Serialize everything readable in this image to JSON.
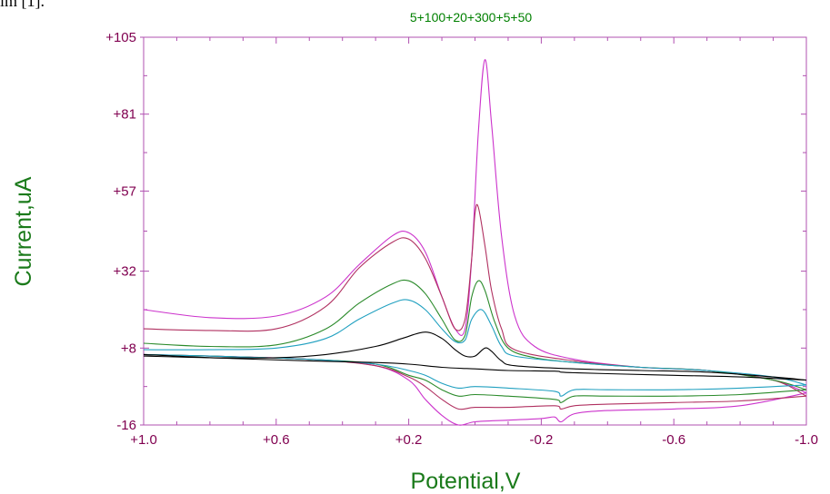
{
  "corner_text": "im [1].",
  "chart_data": {
    "type": "line",
    "title": "5+100+20+300+5+50",
    "xlabel": "Potential,V",
    "ylabel": "Current,uA",
    "xlim": [
      1.0,
      -1.0
    ],
    "ylim": [
      -16,
      105
    ],
    "x_ticks": [
      "+1.0",
      "+0.6",
      "+0.2",
      "-0.2",
      "-0.6",
      "-1.0"
    ],
    "x_tick_values": [
      1.0,
      0.6,
      0.2,
      -0.2,
      -0.6,
      -1.0
    ],
    "y_ticks": [
      "+105",
      "+81",
      "+57",
      "+32",
      "+8",
      "-16"
    ],
    "y_tick_values": [
      105,
      81,
      57,
      32,
      8,
      -16
    ],
    "grid": false,
    "colors": {
      "axis": "#b050b0",
      "tick_label": "#800050",
      "title": "#008000",
      "axis_label": "#1a7a1a"
    },
    "series": [
      {
        "color": "#cc33cc",
        "forward": [
          [
            1.0,
            20
          ],
          [
            0.8,
            17.5
          ],
          [
            0.6,
            18
          ],
          [
            0.45,
            24
          ],
          [
            0.35,
            34
          ],
          [
            0.25,
            43
          ],
          [
            0.2,
            44
          ],
          [
            0.15,
            38
          ],
          [
            0.1,
            24
          ],
          [
            0.06,
            14
          ],
          [
            0.03,
            14
          ],
          [
            0.01,
            36
          ],
          [
            -0.01,
            75
          ],
          [
            -0.03,
            98
          ],
          [
            -0.05,
            78
          ],
          [
            -0.08,
            43
          ],
          [
            -0.12,
            18
          ],
          [
            -0.18,
            8.5
          ],
          [
            -0.3,
            4.5
          ],
          [
            -0.5,
            2
          ],
          [
            -0.7,
            1
          ],
          [
            -0.9,
            -2
          ],
          [
            -1.0,
            -6
          ]
        ],
        "reverse": [
          [
            -1.0,
            -6
          ],
          [
            -0.8,
            -10
          ],
          [
            -0.6,
            -11
          ],
          [
            -0.4,
            -11.5
          ],
          [
            -0.3,
            -12.5
          ],
          [
            -0.26,
            -15
          ],
          [
            -0.24,
            -13.5
          ],
          [
            -0.2,
            -14
          ],
          [
            -0.1,
            -14.5
          ],
          [
            0.0,
            -15
          ],
          [
            0.05,
            -16
          ],
          [
            0.1,
            -13
          ],
          [
            0.15,
            -8
          ],
          [
            0.2,
            -2
          ],
          [
            0.3,
            2.5
          ],
          [
            0.5,
            4.5
          ],
          [
            0.8,
            5.5
          ],
          [
            1.0,
            6
          ]
        ]
      },
      {
        "color": "#b03060",
        "forward": [
          [
            1.0,
            14
          ],
          [
            0.8,
            13.5
          ],
          [
            0.6,
            14
          ],
          [
            0.45,
            21
          ],
          [
            0.35,
            33
          ],
          [
            0.25,
            41
          ],
          [
            0.2,
            42
          ],
          [
            0.15,
            36
          ],
          [
            0.1,
            24
          ],
          [
            0.06,
            14
          ],
          [
            0.03,
            17
          ],
          [
            0.01,
            36
          ],
          [
            0.0,
            50
          ],
          [
            -0.01,
            52
          ],
          [
            -0.03,
            40
          ],
          [
            -0.05,
            26
          ],
          [
            -0.08,
            14
          ],
          [
            -0.12,
            7.5
          ],
          [
            -0.3,
            4
          ],
          [
            -0.5,
            2
          ],
          [
            -0.7,
            1
          ],
          [
            -0.9,
            -2
          ],
          [
            -1.0,
            -7
          ]
        ],
        "reverse": [
          [
            -1.0,
            -7
          ],
          [
            -0.8,
            -8.5
          ],
          [
            -0.6,
            -9
          ],
          [
            -0.4,
            -9.5
          ],
          [
            -0.3,
            -10
          ],
          [
            -0.26,
            -11
          ],
          [
            -0.24,
            -10
          ],
          [
            -0.1,
            -10.5
          ],
          [
            0.0,
            -10.5
          ],
          [
            0.05,
            -11
          ],
          [
            0.1,
            -8
          ],
          [
            0.15,
            -4
          ],
          [
            0.2,
            -1
          ],
          [
            0.3,
            2.5
          ],
          [
            0.5,
            4.5
          ],
          [
            0.8,
            5.5
          ],
          [
            1.0,
            6
          ]
        ]
      },
      {
        "color": "#2a8a2a",
        "forward": [
          [
            1.0,
            9.5
          ],
          [
            0.8,
            8.5
          ],
          [
            0.6,
            9
          ],
          [
            0.45,
            14
          ],
          [
            0.35,
            22
          ],
          [
            0.25,
            28
          ],
          [
            0.2,
            29
          ],
          [
            0.15,
            25
          ],
          [
            0.1,
            17
          ],
          [
            0.06,
            10.5
          ],
          [
            0.03,
            12
          ],
          [
            0.01,
            24
          ],
          [
            -0.01,
            29
          ],
          [
            -0.03,
            26
          ],
          [
            -0.06,
            16
          ],
          [
            -0.1,
            8
          ],
          [
            -0.18,
            5
          ],
          [
            -0.3,
            3.5
          ],
          [
            -0.5,
            2
          ],
          [
            -0.7,
            1
          ],
          [
            -0.9,
            -2
          ],
          [
            -1.0,
            -5
          ]
        ],
        "reverse": [
          [
            -1.0,
            -5
          ],
          [
            -0.8,
            -6.5
          ],
          [
            -0.6,
            -7
          ],
          [
            -0.4,
            -7
          ],
          [
            -0.3,
            -7
          ],
          [
            -0.26,
            -9
          ],
          [
            -0.24,
            -8
          ],
          [
            -0.1,
            -7
          ],
          [
            0.0,
            -6.5
          ],
          [
            0.05,
            -7
          ],
          [
            0.1,
            -5
          ],
          [
            0.15,
            -2
          ],
          [
            0.2,
            -0.5
          ],
          [
            0.3,
            3
          ],
          [
            0.5,
            4.5
          ],
          [
            0.8,
            5.5
          ],
          [
            1.0,
            6
          ]
        ]
      },
      {
        "color": "#20a0c0",
        "forward": [
          [
            1.0,
            7.5
          ],
          [
            0.8,
            7.5
          ],
          [
            0.6,
            8
          ],
          [
            0.45,
            11
          ],
          [
            0.35,
            17
          ],
          [
            0.25,
            22
          ],
          [
            0.2,
            23
          ],
          [
            0.15,
            20
          ],
          [
            0.1,
            14
          ],
          [
            0.06,
            10
          ],
          [
            0.03,
            10.5
          ],
          [
            0.01,
            17
          ],
          [
            -0.02,
            20
          ],
          [
            -0.05,
            15
          ],
          [
            -0.08,
            8.5
          ],
          [
            -0.12,
            5.5
          ],
          [
            -0.3,
            3.5
          ],
          [
            -0.5,
            2
          ],
          [
            -0.7,
            1
          ],
          [
            -0.9,
            -1
          ],
          [
            -1.0,
            -3.5
          ]
        ],
        "reverse": [
          [
            -1.0,
            -3.5
          ],
          [
            -0.8,
            -4.5
          ],
          [
            -0.6,
            -5
          ],
          [
            -0.4,
            -5
          ],
          [
            -0.3,
            -5
          ],
          [
            -0.26,
            -7
          ],
          [
            -0.24,
            -5.5
          ],
          [
            -0.1,
            -4.5
          ],
          [
            0.0,
            -4
          ],
          [
            0.05,
            -4.5
          ],
          [
            0.1,
            -3
          ],
          [
            0.15,
            -0.5
          ],
          [
            0.2,
            1
          ],
          [
            0.3,
            3
          ],
          [
            0.5,
            4.5
          ],
          [
            0.8,
            5.5
          ],
          [
            1.0,
            6
          ]
        ]
      },
      {
        "color": "#000000",
        "forward": [
          [
            1.0,
            5.5
          ],
          [
            0.8,
            5
          ],
          [
            0.6,
            5
          ],
          [
            0.45,
            6
          ],
          [
            0.3,
            8.5
          ],
          [
            0.22,
            11
          ],
          [
            0.15,
            13
          ],
          [
            0.1,
            11
          ],
          [
            0.06,
            7.5
          ],
          [
            0.03,
            5.5
          ],
          [
            0.0,
            5.5
          ],
          [
            -0.03,
            8
          ],
          [
            -0.05,
            7
          ],
          [
            -0.08,
            4
          ],
          [
            -0.12,
            2.5
          ],
          [
            -0.3,
            1.5
          ],
          [
            -0.5,
            1
          ],
          [
            -0.7,
            0.5
          ],
          [
            -0.9,
            -1
          ],
          [
            -1.0,
            -2
          ]
        ],
        "reverse": [
          [
            -1.0,
            -2
          ],
          [
            -0.8,
            -1
          ],
          [
            -0.6,
            -0.5
          ],
          [
            -0.4,
            0
          ],
          [
            -0.3,
            0.3
          ],
          [
            -0.26,
            0.5
          ],
          [
            -0.24,
            0.8
          ],
          [
            -0.1,
            1
          ],
          [
            0.0,
            1.5
          ],
          [
            0.1,
            2
          ],
          [
            0.2,
            3
          ],
          [
            0.3,
            3.5
          ],
          [
            0.5,
            4
          ],
          [
            0.8,
            5
          ],
          [
            1.0,
            6
          ]
        ]
      }
    ]
  }
}
